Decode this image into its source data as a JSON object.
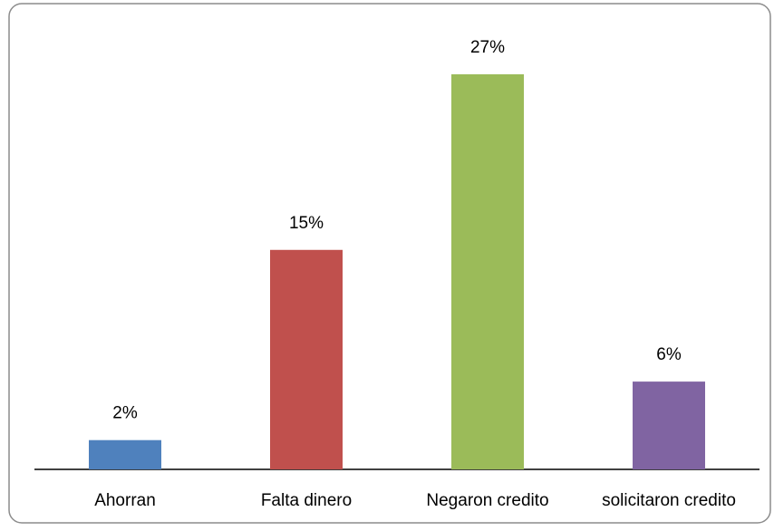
{
  "chart_data": {
    "type": "bar",
    "categories": [
      "Ahorran",
      "Falta dinero",
      "Negaron credito",
      "solicitaron credito"
    ],
    "values": [
      2,
      15,
      27,
      6
    ],
    "value_labels": [
      "2%",
      "15%",
      "27%",
      "6%"
    ],
    "colors": [
      "#4f81bd",
      "#c0504d",
      "#9bbb59",
      "#8064a2"
    ]
  }
}
